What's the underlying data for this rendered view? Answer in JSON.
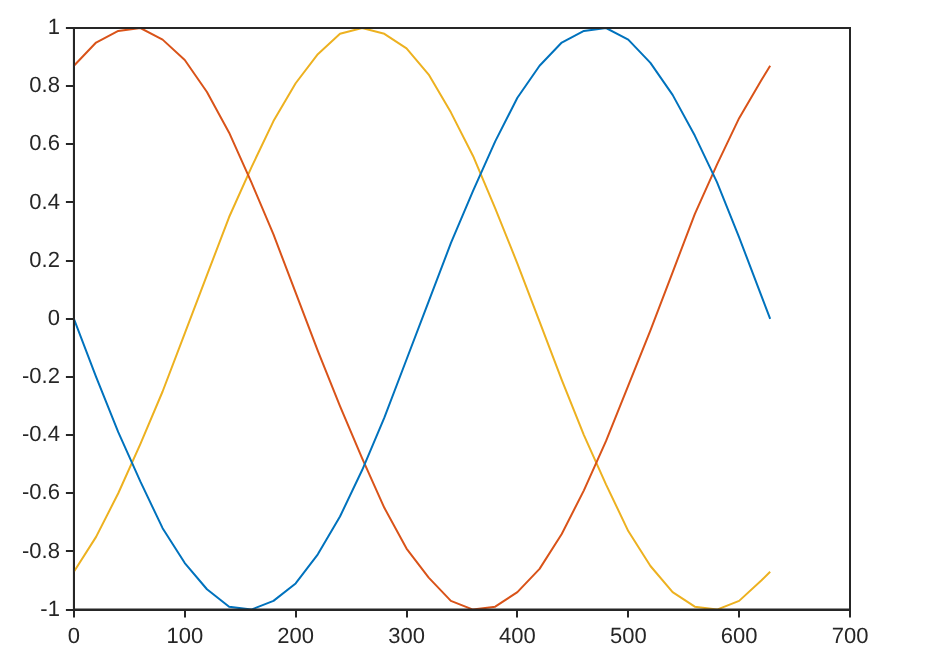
{
  "chart_data": {
    "type": "line",
    "x": [
      0,
      20,
      40,
      60,
      80,
      100,
      120,
      140,
      160,
      180,
      200,
      220,
      240,
      260,
      280,
      300,
      320,
      340,
      360,
      380,
      400,
      420,
      440,
      460,
      480,
      500,
      520,
      540,
      560,
      580,
      600,
      620,
      628
    ],
    "series": [
      {
        "color": "#0072bd",
        "values": [
          0,
          -0.2,
          -0.39,
          -0.56,
          -0.72,
          -0.84,
          -0.93,
          -0.99,
          -1,
          -0.97,
          -0.91,
          -0.81,
          -0.68,
          -0.52,
          -0.34,
          -0.14,
          0.06,
          0.26,
          0.44,
          0.61,
          0.76,
          0.87,
          0.95,
          0.99,
          1,
          0.96,
          0.88,
          0.77,
          0.63,
          0.47,
          0.28,
          0.08,
          0
        ]
      },
      {
        "color": "#d95319",
        "values": [
          0.87,
          0.95,
          0.99,
          1,
          0.96,
          0.89,
          0.78,
          0.64,
          0.47,
          0.29,
          0.09,
          -0.11,
          -0.3,
          -0.48,
          -0.65,
          -0.79,
          -0.89,
          -0.97,
          -1,
          -0.99,
          -0.94,
          -0.86,
          -0.74,
          -0.59,
          -0.42,
          -0.23,
          -0.04,
          0.16,
          0.36,
          0.53,
          0.69,
          0.82,
          0.87
        ]
      },
      {
        "color": "#edb120",
        "values": [
          -0.87,
          -0.75,
          -0.6,
          -0.43,
          -0.25,
          -0.05,
          0.15,
          0.35,
          0.52,
          0.68,
          0.81,
          0.91,
          0.98,
          1,
          0.98,
          0.93,
          0.84,
          0.71,
          0.56,
          0.38,
          0.19,
          -0.01,
          -0.21,
          -0.4,
          -0.57,
          -0.73,
          -0.85,
          -0.94,
          -0.99,
          -1,
          -0.97,
          -0.9,
          -0.87
        ]
      }
    ],
    "xlim": [
      0,
      700
    ],
    "xticks": [
      0,
      100,
      200,
      300,
      400,
      500,
      600,
      700
    ],
    "ylim": [
      -1,
      1
    ],
    "yticks": [
      -1,
      -0.8,
      -0.6,
      -0.4,
      -0.2,
      0,
      0.2,
      0.4,
      0.6,
      0.8,
      1
    ],
    "grid": false,
    "legend": false,
    "marker": "none",
    "line_style": "solid"
  }
}
